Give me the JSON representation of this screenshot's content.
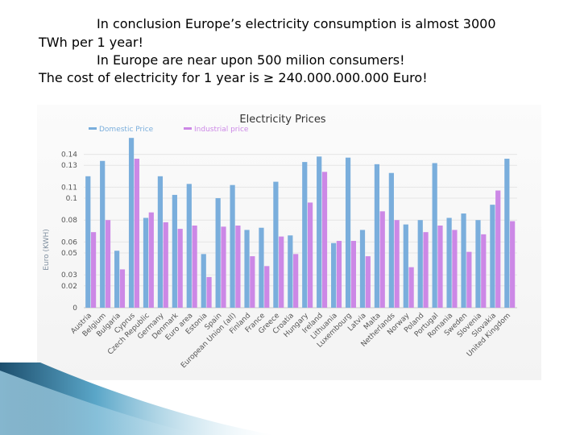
{
  "slide": {
    "lines": [
      "In conclusion Europe’s electricity consumption is almost 3000",
      "TWh per 1 year!",
      "In Europe are near upon 500 milion consumers!",
      "The cost of electricity for 1 year is ≥ 240.000.000.000  Euro!"
    ]
  },
  "chart_data": {
    "type": "bar",
    "title": "Electricity Prices",
    "xlabel": "",
    "ylabel": "Euro (KWH)",
    "ylim": [
      0,
      0.15
    ],
    "yticks": [
      {
        "value": 0,
        "label": "0"
      },
      {
        "value": 0.02,
        "label": "0.02"
      },
      {
        "value": 0.03,
        "label": "0.03"
      },
      {
        "value": 0.05,
        "label": "0.05"
      },
      {
        "value": 0.06,
        "label": "0.06"
      },
      {
        "value": 0.08,
        "label": "0.08"
      },
      {
        "value": 0.1,
        "label": "0.1"
      },
      {
        "value": 0.11,
        "label": "0.11"
      },
      {
        "value": 0.13,
        "label": "0.13"
      },
      {
        "value": 0.14,
        "label": "0.14"
      }
    ],
    "grid": true,
    "legend_position": "top-left",
    "categories": [
      "Austria",
      "Belgium",
      "Bulgaria",
      "Cyprus",
      "Czech Republic",
      "Germany",
      "Denmark",
      "Euro area",
      "Estonia",
      "Spain",
      "European Union (all)",
      "Finland",
      "France",
      "Greece",
      "Croatia",
      "Hungary",
      "Ireland",
      "Lithuania",
      "Luxembourg",
      "Latvia",
      "Malta",
      "Netherlands",
      "Norway",
      "Poland",
      "Portugal",
      "Romania",
      "Sweden",
      "Slovenia",
      "Slovakia",
      "United Kingdom"
    ],
    "series": [
      {
        "name": "Domestic Price",
        "color": "#7aaedc",
        "values": [
          0.12,
          0.134,
          0.052,
          0.155,
          0.082,
          0.12,
          0.103,
          0.113,
          0.049,
          0.1,
          0.112,
          0.071,
          0.073,
          0.115,
          0.066,
          0.133,
          0.138,
          0.059,
          0.137,
          0.071,
          0.131,
          0.123,
          0.076,
          0.08,
          0.132,
          0.082,
          0.086,
          0.08,
          0.094,
          0.136
        ]
      },
      {
        "name": "Industrial price",
        "color": "#cc88e6",
        "values": [
          0.069,
          0.08,
          0.035,
          0.136,
          0.087,
          0.078,
          0.072,
          0.075,
          0.028,
          0.074,
          0.075,
          0.047,
          0.038,
          0.065,
          0.049,
          0.096,
          0.124,
          0.061,
          0.061,
          0.047,
          0.088,
          0.08,
          0.037,
          0.069,
          0.075,
          0.071,
          0.051,
          0.067,
          0.107,
          0.079
        ]
      }
    ]
  },
  "colors": {
    "grid": "#e6e6e6",
    "axis_text": "#555555",
    "title": "#333333",
    "ylabel": "#8090a0",
    "decor_dark": "#1d4f6e",
    "decor_light": "#9fd0e6"
  }
}
